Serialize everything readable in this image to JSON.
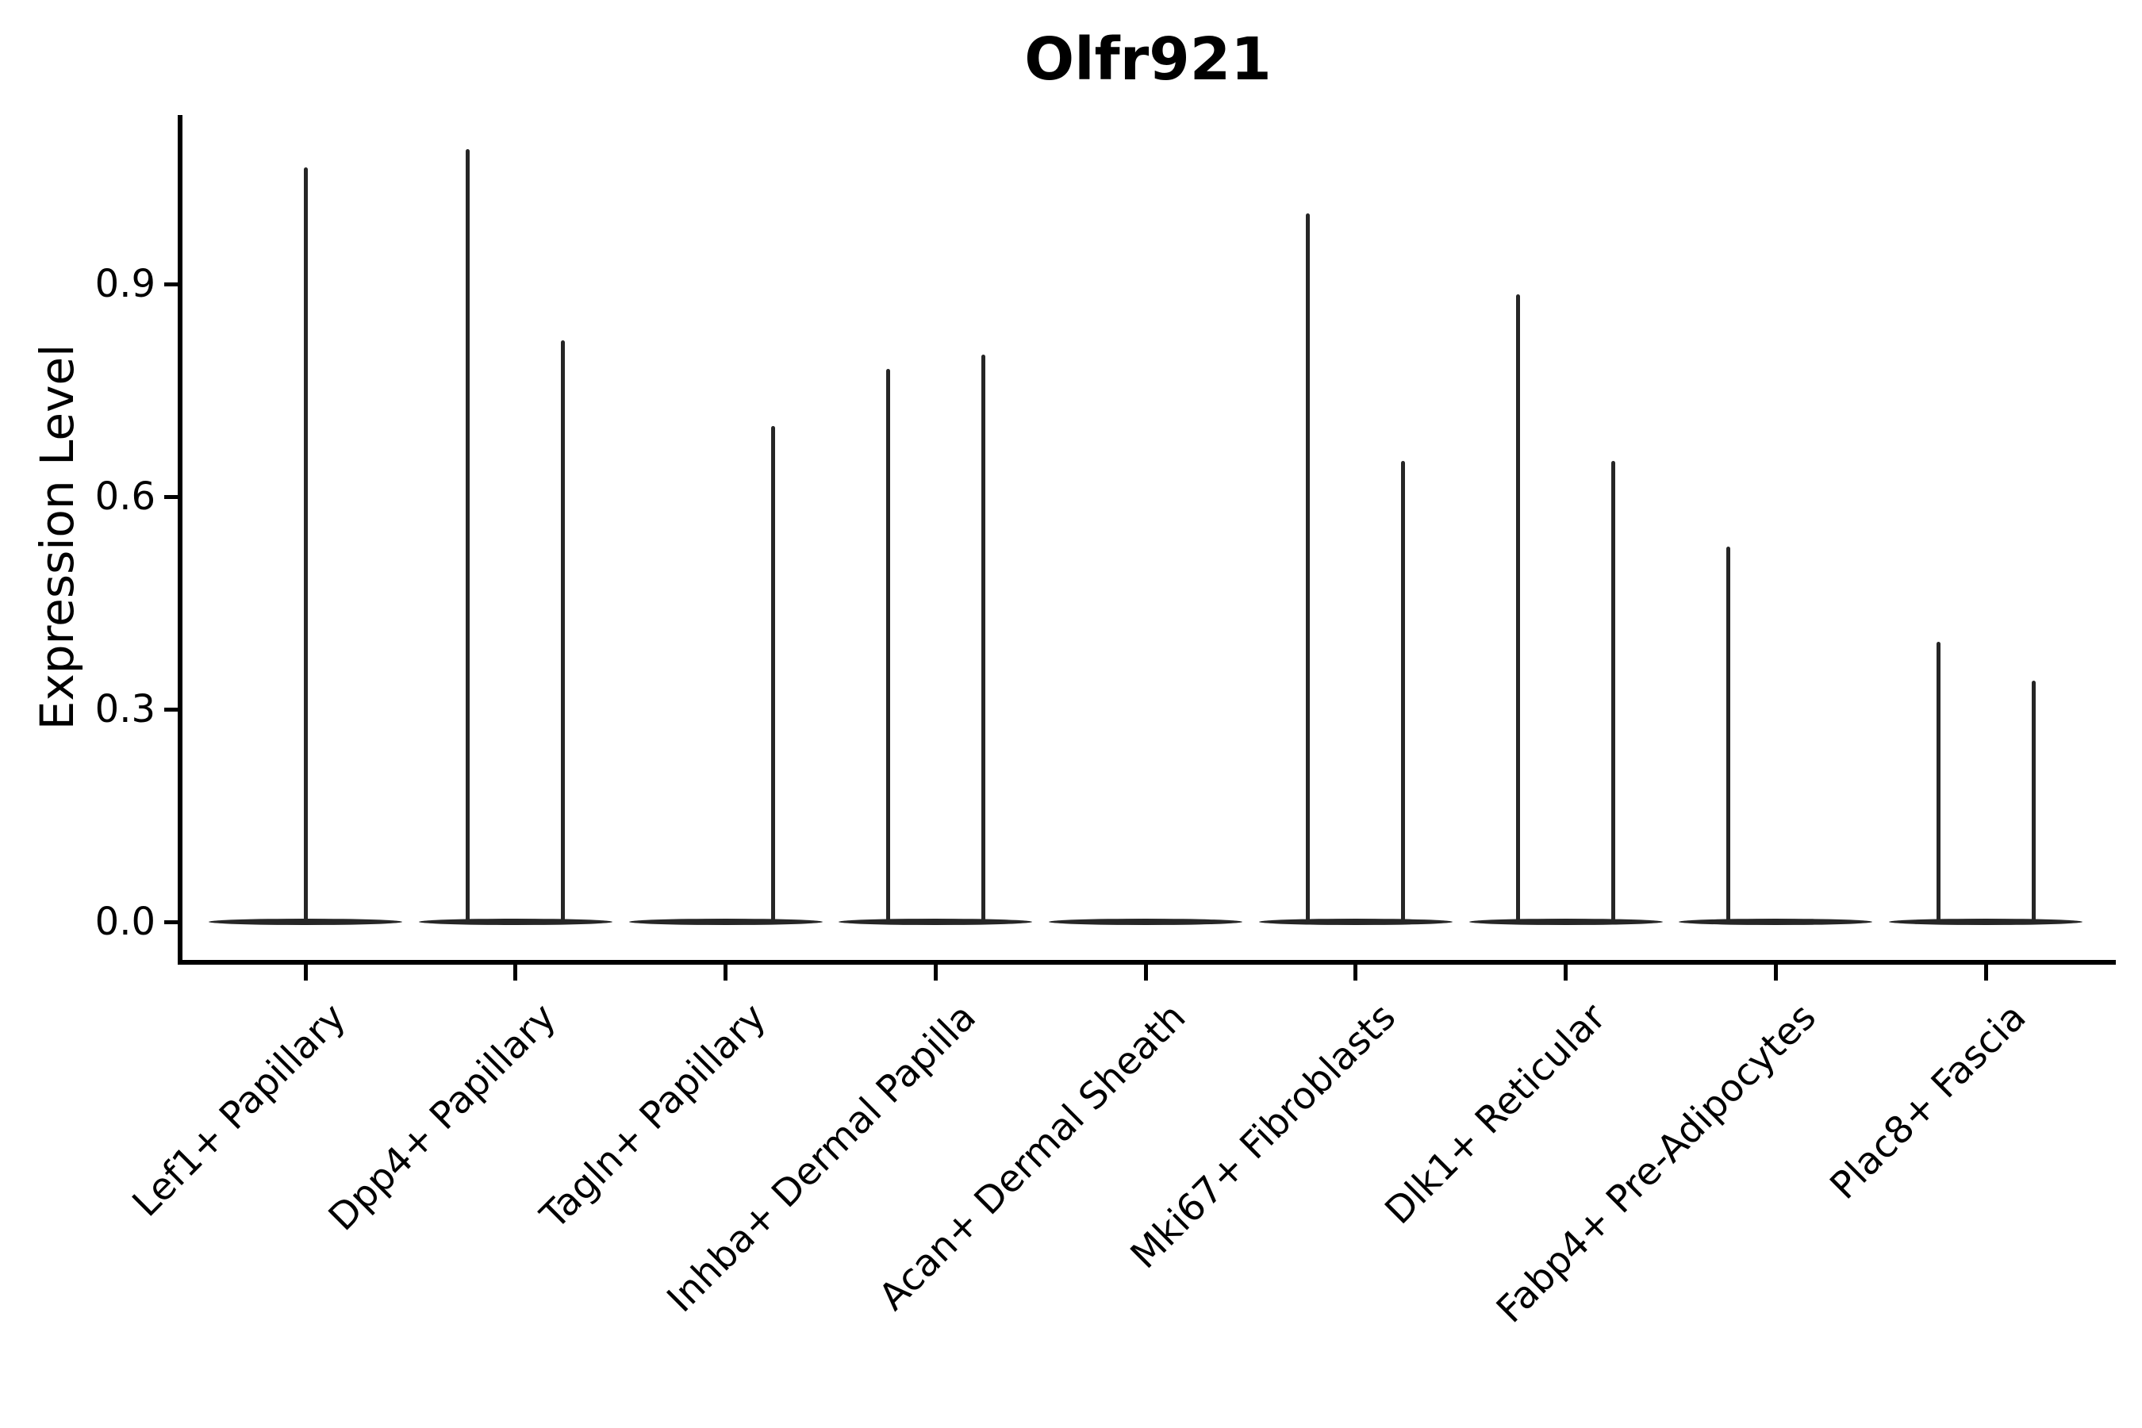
{
  "title": "Olfr921",
  "y_axis": {
    "label": "Expression Level",
    "ticks": [
      {
        "label": "0.0",
        "value": 0.0
      },
      {
        "label": "0.3",
        "value": 0.3
      },
      {
        "label": "0.6",
        "value": 0.6
      },
      {
        "label": "0.9",
        "value": 0.9
      }
    ]
  },
  "colors": {
    "ink": "#000000",
    "violin_stroke": "#262626"
  },
  "chart_data": {
    "type": "violin",
    "title": "Olfr921",
    "ylabel": "Expression Level",
    "xlabel": "",
    "ylim": [
      0,
      1.14
    ],
    "yticks": [
      0.0,
      0.3,
      0.6,
      0.9
    ],
    "grid": false,
    "legend": "none",
    "categories": [
      {
        "label": "Lef1+ Papillary",
        "violins": [
          {
            "position": "center",
            "max": 1.065
          }
        ]
      },
      {
        "label": "Dpp4+ Papillary",
        "violins": [
          {
            "position": "left",
            "max": 1.09
          },
          {
            "position": "right",
            "max": 0.82
          }
        ]
      },
      {
        "label": "Tagln+ Papillary",
        "violins": [
          {
            "position": "right",
            "max": 0.7
          }
        ]
      },
      {
        "label": "Inhba+ Dermal Papilla",
        "violins": [
          {
            "position": "left",
            "max": 0.78
          },
          {
            "position": "right",
            "max": 0.8
          }
        ]
      },
      {
        "label": "Acan+ Dermal Sheath",
        "violins": []
      },
      {
        "label": "Mki67+ Fibroblasts",
        "violins": [
          {
            "position": "left",
            "max": 1.0
          },
          {
            "position": "right",
            "max": 0.65
          }
        ]
      },
      {
        "label": "Dlk1+ Reticular",
        "violins": [
          {
            "position": "left",
            "max": 0.885
          },
          {
            "position": "right",
            "max": 0.65
          }
        ]
      },
      {
        "label": "Fabp4+ Pre-Adipocytes",
        "violins": [
          {
            "position": "left",
            "max": 0.53
          }
        ]
      },
      {
        "label": "Plac8+ Fascia",
        "violins": [
          {
            "position": "left",
            "max": 0.395
          },
          {
            "position": "right",
            "max": 0.34
          }
        ]
      }
    ]
  }
}
